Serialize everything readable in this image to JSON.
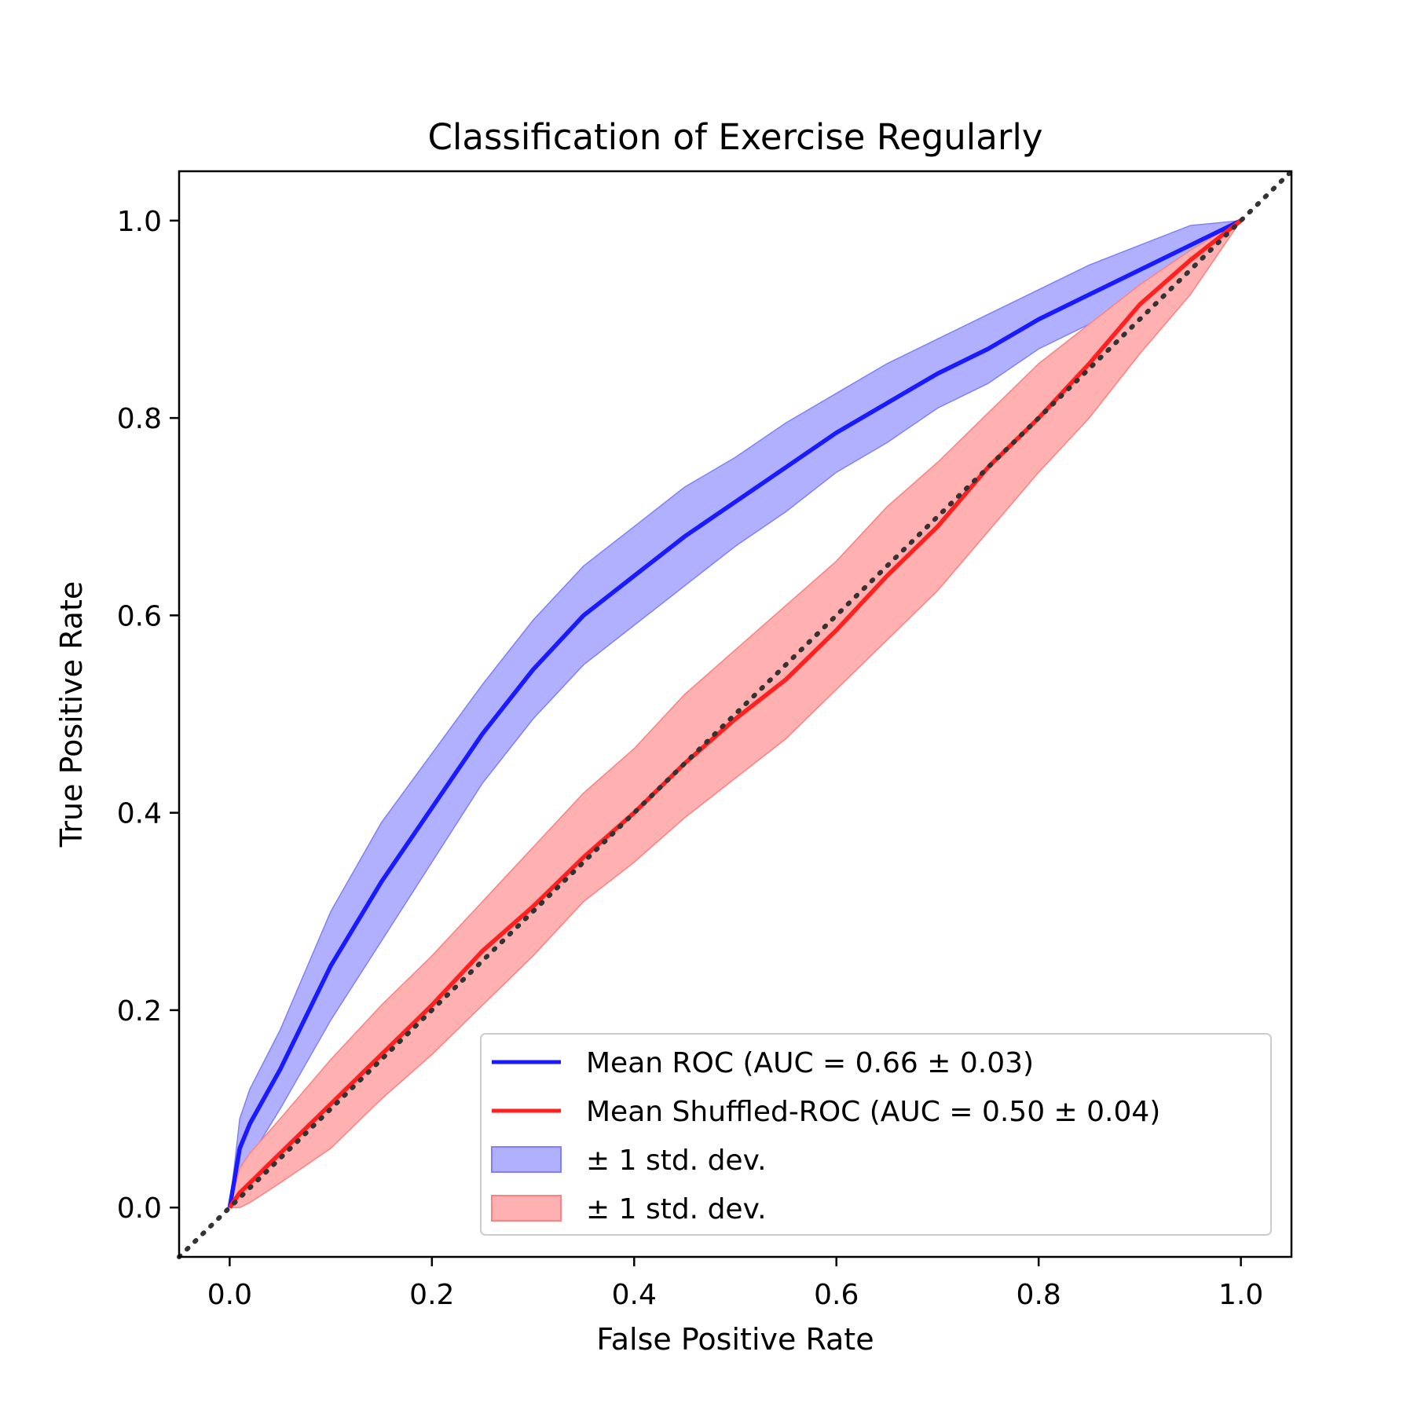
{
  "chart_data": {
    "type": "line",
    "title": "Classification of Exercise Regularly",
    "xlabel": "False Positive Rate",
    "ylabel": "True Positive Rate",
    "xlim": [
      -0.05,
      1.05
    ],
    "ylim": [
      -0.05,
      1.05
    ],
    "xticks": [
      "0.0",
      "0.2",
      "0.4",
      "0.6",
      "0.8",
      "1.0"
    ],
    "yticks": [
      "0.0",
      "0.2",
      "0.4",
      "0.6",
      "0.8",
      "1.0"
    ],
    "grid": false,
    "legend_position": "lower right",
    "x": [
      0.0,
      0.01,
      0.02,
      0.05,
      0.1,
      0.15,
      0.2,
      0.25,
      0.3,
      0.35,
      0.4,
      0.45,
      0.5,
      0.55,
      0.6,
      0.65,
      0.7,
      0.75,
      0.8,
      0.85,
      0.9,
      0.95,
      1.0
    ],
    "series": [
      {
        "name": "Mean ROC (AUC = 0.66 ± 0.03)",
        "color": "#1a1aff",
        "y": [
          0.0,
          0.06,
          0.085,
          0.14,
          0.245,
          0.33,
          0.405,
          0.48,
          0.545,
          0.6,
          0.64,
          0.68,
          0.715,
          0.75,
          0.785,
          0.815,
          0.845,
          0.87,
          0.9,
          0.925,
          0.95,
          0.975,
          1.0
        ],
        "y_upper": [
          0.0,
          0.09,
          0.12,
          0.18,
          0.3,
          0.39,
          0.46,
          0.53,
          0.595,
          0.65,
          0.69,
          0.73,
          0.76,
          0.795,
          0.825,
          0.855,
          0.88,
          0.905,
          0.93,
          0.955,
          0.975,
          0.995,
          1.0
        ],
        "y_lower": [
          0.0,
          0.03,
          0.05,
          0.1,
          0.19,
          0.27,
          0.35,
          0.43,
          0.495,
          0.55,
          0.59,
          0.63,
          0.67,
          0.705,
          0.745,
          0.775,
          0.81,
          0.835,
          0.87,
          0.895,
          0.925,
          0.955,
          1.0
        ]
      },
      {
        "name": "Mean Shuffled-ROC (AUC = 0.50 ± 0.04)",
        "color": "#ff2020",
        "y": [
          0.0,
          0.015,
          0.025,
          0.055,
          0.105,
          0.155,
          0.205,
          0.26,
          0.305,
          0.355,
          0.4,
          0.45,
          0.495,
          0.535,
          0.585,
          0.64,
          0.69,
          0.75,
          0.8,
          0.855,
          0.915,
          0.96,
          1.0
        ],
        "y_upper": [
          0.0,
          0.04,
          0.055,
          0.09,
          0.15,
          0.205,
          0.255,
          0.31,
          0.365,
          0.42,
          0.465,
          0.52,
          0.565,
          0.61,
          0.655,
          0.71,
          0.755,
          0.805,
          0.855,
          0.895,
          0.935,
          0.97,
          1.0
        ],
        "y_lower": [
          0.0,
          0.0,
          0.005,
          0.025,
          0.06,
          0.11,
          0.155,
          0.205,
          0.255,
          0.31,
          0.35,
          0.395,
          0.435,
          0.475,
          0.525,
          0.575,
          0.625,
          0.685,
          0.745,
          0.8,
          0.865,
          0.925,
          1.0
        ]
      }
    ],
    "bands": [
      {
        "label": "± 1 std. dev.",
        "color": "#b0b0ff",
        "edge": "#8080ff"
      },
      {
        "label": "± 1 std. dev.",
        "color": "#ffb0b0",
        "edge": "#ff8080"
      }
    ],
    "reference_line": {
      "x": [
        -0.05,
        1.05
      ],
      "y": [
        -0.05,
        1.05
      ],
      "style": "dotted",
      "color": "#333333"
    }
  }
}
